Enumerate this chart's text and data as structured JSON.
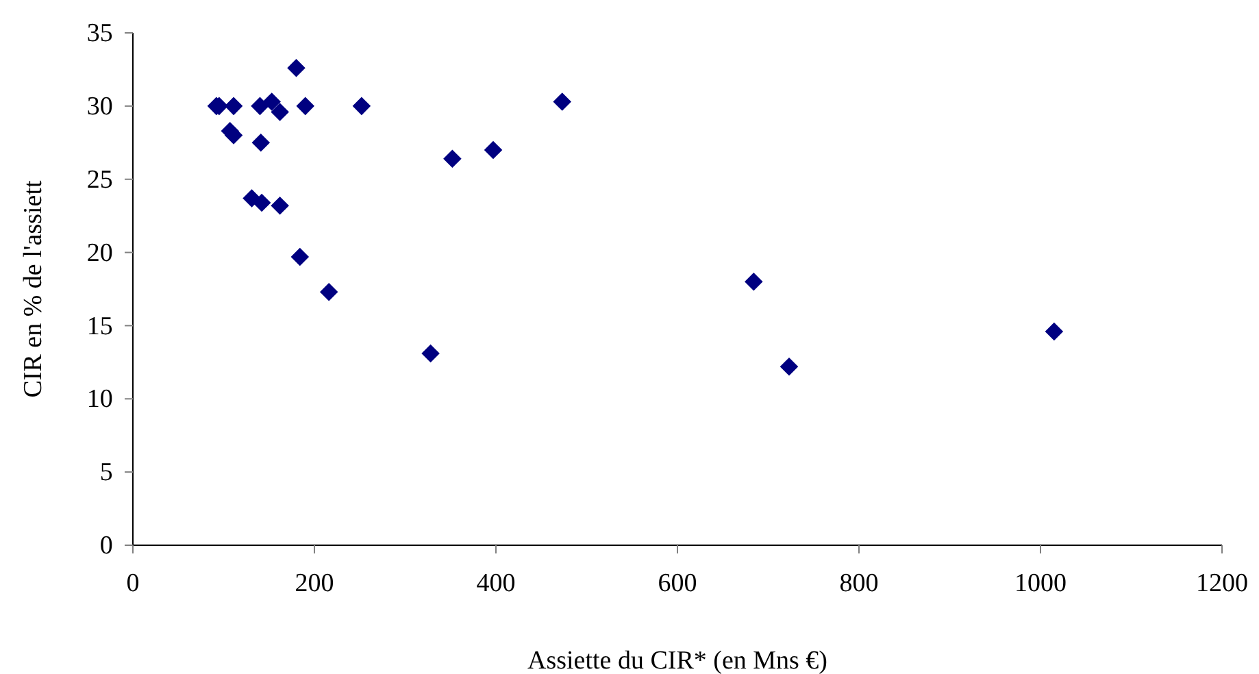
{
  "chart_data": {
    "type": "scatter",
    "xlabel": "Assiette du CIR* (en Mns €)",
    "ylabel": "CIR en % de l'assiett",
    "marker": "diamond",
    "xlim": [
      0,
      1200
    ],
    "xticks": [
      0,
      200,
      400,
      600,
      800,
      1000,
      1200
    ],
    "ylim": [
      0,
      35
    ],
    "yticks": [
      0,
      5,
      10,
      15,
      20,
      25,
      30,
      35
    ],
    "series": [
      {
        "color": "#000080",
        "x": [
          92,
          95,
          111,
          140,
          153,
          162,
          190,
          180,
          252,
          107,
          111,
          141,
          131,
          142,
          162,
          184,
          216,
          473,
          352,
          397,
          684,
          328,
          723,
          1015
        ],
        "values": [
          30,
          30,
          30,
          30,
          30.3,
          29.6,
          30,
          32.6,
          30,
          28.3,
          28,
          27.5,
          23.7,
          23.4,
          23.2,
          19.7,
          17.3,
          30.3,
          26.4,
          27,
          18,
          13.1,
          12.2,
          14.6
        ]
      }
    ]
  }
}
